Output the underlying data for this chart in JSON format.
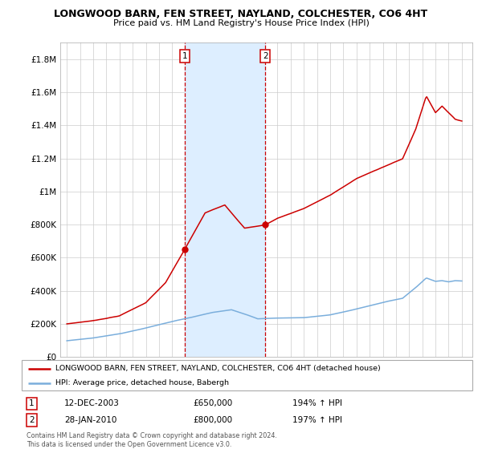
{
  "title": "LONGWOOD BARN, FEN STREET, NAYLAND, COLCHESTER, CO6 4HT",
  "subtitle": "Price paid vs. HM Land Registry's House Price Index (HPI)",
  "legend_label_red": "LONGWOOD BARN, FEN STREET, NAYLAND, COLCHESTER, CO6 4HT (detached house)",
  "legend_label_blue": "HPI: Average price, detached house, Babergh",
  "annotation1_date": "12-DEC-2003",
  "annotation1_price": "£650,000",
  "annotation1_hpi": "194% ↑ HPI",
  "annotation2_date": "28-JAN-2010",
  "annotation2_price": "£800,000",
  "annotation2_hpi": "197% ↑ HPI",
  "footer": "Contains HM Land Registry data © Crown copyright and database right 2024.\nThis data is licensed under the Open Government Licence v3.0.",
  "red_color": "#cc0000",
  "blue_color": "#7aaedc",
  "shade_color": "#ddeeff",
  "vline_color": "#cc0000",
  "yticks": [
    0,
    200000,
    400000,
    600000,
    800000,
    1000000,
    1200000,
    1400000,
    1600000,
    1800000
  ],
  "ytick_labels": [
    "£0",
    "£200K",
    "£400K",
    "£600K",
    "£800K",
    "£1M",
    "£1.2M",
    "£1.4M",
    "£1.6M",
    "£1.8M"
  ],
  "sale1_x": 2003.95,
  "sale1_y": 650000,
  "sale2_x": 2010.07,
  "sale2_y": 800000,
  "shade_x1": 2003.95,
  "shade_x2": 2010.07,
  "xlim_left": 1994.5,
  "xlim_right": 2025.8,
  "ylim_top": 1900000
}
